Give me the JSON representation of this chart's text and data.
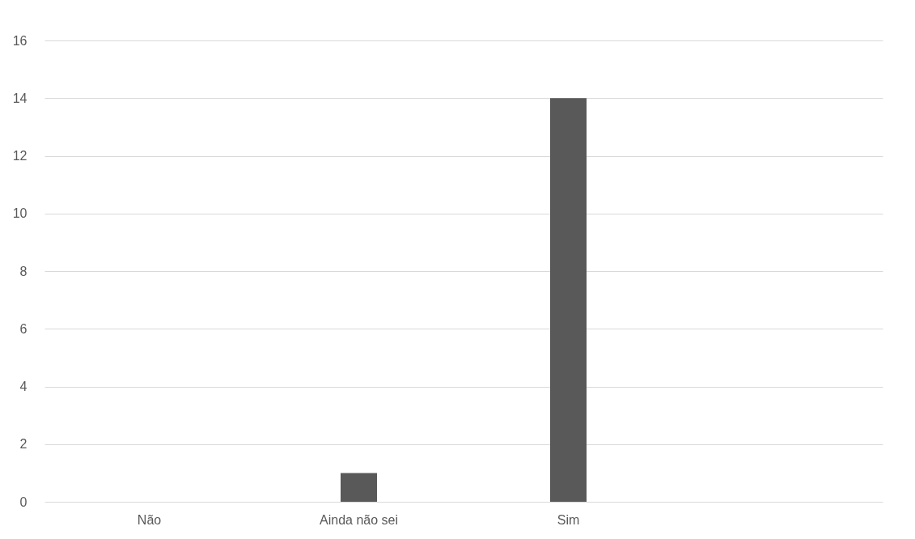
{
  "chart_data": {
    "type": "bar",
    "categories": [
      "Não",
      "Ainda não sei",
      "Sim",
      null
    ],
    "values": [
      0,
      1,
      14,
      null
    ],
    "color": "#595959",
    "ylim": [
      0,
      16
    ],
    "yticks": [
      0,
      2,
      4,
      6,
      8,
      10,
      12,
      14,
      16
    ],
    "grid": "y"
  }
}
